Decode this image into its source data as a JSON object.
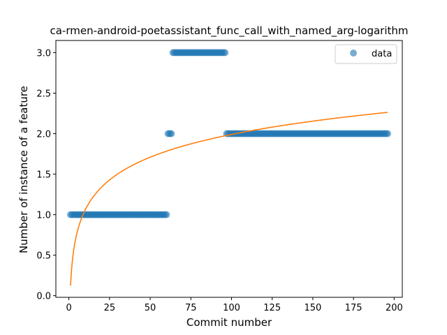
{
  "chart_data": {
    "type": "scatter",
    "title": "ca-rmen-android-poetassistant_func_call_with_named_arg-logarithm",
    "xlabel": "Commit number",
    "ylabel": "Number of instance of a feature",
    "xlim": [
      -8,
      205
    ],
    "ylim": [
      -0.02,
      3.15
    ],
    "xticks": [
      0,
      25,
      50,
      75,
      100,
      125,
      150,
      175,
      200
    ],
    "yticks": [
      0.0,
      0.5,
      1.0,
      1.5,
      2.0,
      2.5,
      3.0
    ],
    "xtick_labels": [
      "0",
      "25",
      "50",
      "75",
      "100",
      "125",
      "150",
      "175",
      "200"
    ],
    "ytick_labels": [
      "0.0",
      "0.5",
      "1.0",
      "1.5",
      "2.0",
      "2.5",
      "3.0"
    ],
    "grid": false,
    "legend_position": "top-right",
    "series": [
      {
        "name": "data",
        "kind": "scatter",
        "color": "#1f77b4",
        "segments": [
          {
            "x_start": 1,
            "x_end": 60,
            "y": 1
          },
          {
            "x_start": 61,
            "x_end": 63,
            "y": 2
          },
          {
            "x_start": 64,
            "x_end": 96,
            "y": 3
          },
          {
            "x_start": 97,
            "x_end": 196,
            "y": 2
          }
        ]
      },
      {
        "name": "",
        "kind": "line",
        "color": "#ff7f0e",
        "fit": {
          "model": "a + b*ln(x)",
          "a": 0.125,
          "b": 0.405,
          "x_start": 1,
          "x_end": 196
        }
      }
    ]
  }
}
